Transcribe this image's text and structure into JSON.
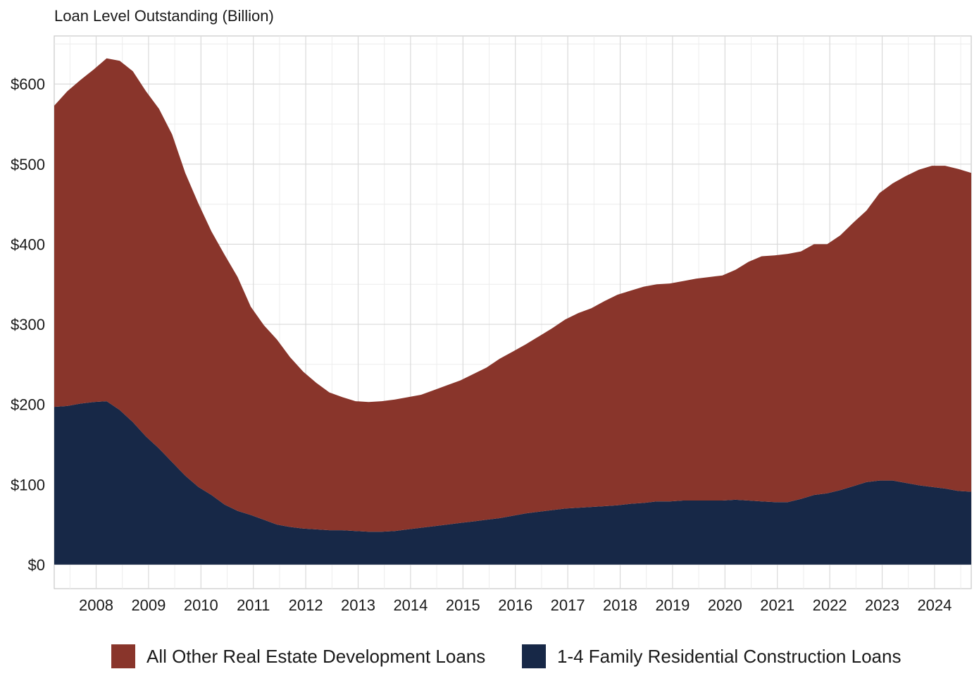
{
  "chart_data": {
    "type": "area",
    "stacked": true,
    "title": "",
    "subtitle": "Loan Level Outstanding (Billion)",
    "xlabel": "",
    "ylabel": "",
    "x_ticks": [
      "2008",
      "2009",
      "2010",
      "2011",
      "2012",
      "2013",
      "2014",
      "2015",
      "2016",
      "2017",
      "2018",
      "2019",
      "2020",
      "2021",
      "2022",
      "2023",
      "2024"
    ],
    "y_ticks": [
      "$0",
      "$100",
      "$200",
      "$300",
      "$400",
      "$500",
      "$600"
    ],
    "ylim": [
      -30,
      660
    ],
    "xlim": [
      2007.2,
      2024.7
    ],
    "grid": true,
    "legend_position": "bottom",
    "x": [
      2007.2,
      2007.45,
      2007.7,
      2007.95,
      2008.2,
      2008.45,
      2008.7,
      2008.95,
      2009.2,
      2009.45,
      2009.7,
      2009.95,
      2010.2,
      2010.45,
      2010.7,
      2010.95,
      2011.2,
      2011.45,
      2011.7,
      2011.95,
      2012.2,
      2012.45,
      2012.7,
      2012.95,
      2013.2,
      2013.45,
      2013.7,
      2013.95,
      2014.2,
      2014.45,
      2014.7,
      2014.95,
      2015.2,
      2015.45,
      2015.7,
      2015.95,
      2016.2,
      2016.45,
      2016.7,
      2016.95,
      2017.2,
      2017.45,
      2017.7,
      2017.95,
      2018.2,
      2018.45,
      2018.7,
      2018.95,
      2019.2,
      2019.45,
      2019.7,
      2019.95,
      2020.2,
      2020.45,
      2020.7,
      2020.95,
      2021.2,
      2021.45,
      2021.7,
      2021.95,
      2022.2,
      2022.45,
      2022.7,
      2022.95,
      2023.2,
      2023.45,
      2023.7,
      2023.95,
      2024.2,
      2024.45,
      2024.7
    ],
    "series": [
      {
        "name": "1-4 Family Residential Construction Loans",
        "color": "#172847",
        "values": [
          197,
          198,
          201,
          203,
          204,
          193,
          178,
          160,
          145,
          128,
          111,
          97,
          87,
          75,
          67,
          62,
          56,
          50,
          47,
          45,
          44,
          43,
          43,
          42,
          41,
          41,
          42,
          44,
          46,
          48,
          50,
          52,
          54,
          56,
          58,
          61,
          64,
          66,
          68,
          70,
          71,
          72,
          73,
          74,
          76,
          77,
          79,
          79,
          80,
          80,
          80,
          80,
          81,
          80,
          79,
          78,
          78,
          82,
          87,
          89,
          93,
          98,
          103,
          105,
          105,
          102,
          99,
          97,
          95,
          92,
          91
        ]
      },
      {
        "name": "All Other Real Estate Development Loans",
        "color": "#89352b",
        "values": [
          376,
          393,
          404,
          415,
          428,
          436,
          438,
          431,
          424,
          409,
          378,
          354,
          329,
          312,
          292,
          260,
          243,
          231,
          212,
          196,
          183,
          172,
          166,
          162,
          162,
          163,
          164,
          165,
          166,
          170,
          174,
          178,
          184,
          190,
          199,
          205,
          211,
          219,
          227,
          236,
          243,
          248,
          256,
          263,
          266,
          270,
          271,
          272,
          274,
          277,
          279,
          281,
          287,
          298,
          306,
          308,
          310,
          309,
          313,
          311,
          318,
          329,
          339,
          359,
          371,
          383,
          394,
          401,
          403,
          402,
          398
        ]
      }
    ],
    "legend": [
      "All Other Real Estate Development Loans",
      "1-4 Family Residential Construction Loans"
    ]
  }
}
